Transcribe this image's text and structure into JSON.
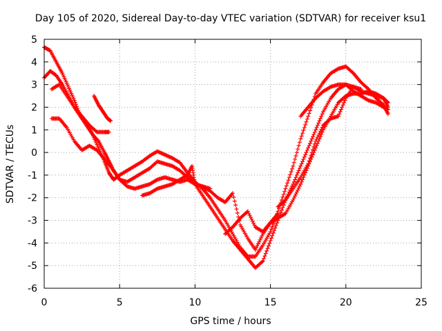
{
  "chart_data": {
    "type": "scatter",
    "title": "Day 105 of 2020, Sidereal Day-to-day VTEC variation (SDTVAR) for receiver ksu1",
    "xlabel": "GPS time / hours",
    "ylabel": "SDTVAR / TECUs",
    "xlim": [
      0,
      25
    ],
    "ylim": [
      -6,
      5
    ],
    "xticks": [
      0,
      5,
      10,
      15,
      20,
      25
    ],
    "yticks": [
      -6,
      -5,
      -4,
      -3,
      -2,
      -1,
      0,
      1,
      2,
      3,
      4,
      5
    ],
    "grid": true,
    "marker": "+",
    "color": "#ff0000",
    "series": [
      {
        "name": "trace-1",
        "points": [
          [
            0.0,
            4.65
          ],
          [
            0.4,
            4.5
          ],
          [
            0.8,
            4.0
          ],
          [
            1.2,
            3.5
          ],
          [
            1.6,
            2.9
          ],
          [
            2.0,
            2.3
          ],
          [
            2.4,
            1.6
          ],
          [
            2.8,
            1.2
          ],
          [
            3.2,
            0.8
          ],
          [
            3.6,
            0.2
          ],
          [
            4.0,
            -0.4
          ],
          [
            4.3,
            -0.9
          ],
          [
            4.6,
            -1.2
          ],
          [
            5.0,
            -1.0
          ],
          [
            5.5,
            -0.8
          ],
          [
            6.0,
            -0.6
          ],
          [
            6.5,
            -0.4
          ],
          [
            7.0,
            -0.15
          ],
          [
            7.5,
            0.05
          ],
          [
            8.0,
            -0.1
          ],
          [
            8.5,
            -0.25
          ],
          [
            9.0,
            -0.45
          ],
          [
            9.5,
            -0.9
          ],
          [
            10.0,
            -1.3
          ],
          [
            10.5,
            -1.6
          ],
          [
            11.0,
            -2.0
          ],
          [
            11.5,
            -2.5
          ],
          [
            12.0,
            -3.0
          ],
          [
            12.5,
            -3.6
          ],
          [
            13.0,
            -4.2
          ],
          [
            13.5,
            -4.6
          ],
          [
            14.0,
            -4.6
          ],
          [
            14.5,
            -4.1
          ],
          [
            15.0,
            -3.5
          ],
          [
            15.5,
            -2.6
          ],
          [
            16.0,
            -1.6
          ],
          [
            16.5,
            -0.6
          ],
          [
            17.0,
            0.6
          ],
          [
            17.5,
            1.6
          ],
          [
            18.0,
            2.6
          ],
          [
            18.5,
            3.1
          ],
          [
            19.0,
            3.5
          ],
          [
            19.5,
            3.7
          ],
          [
            20.0,
            3.8
          ],
          [
            20.5,
            3.5
          ],
          [
            21.0,
            3.1
          ],
          [
            21.5,
            2.8
          ],
          [
            22.0,
            2.4
          ],
          [
            22.5,
            2.1
          ],
          [
            22.8,
            1.7
          ]
        ]
      },
      {
        "name": "trace-2",
        "points": [
          [
            0.0,
            3.3
          ],
          [
            0.4,
            3.6
          ],
          [
            0.8,
            3.4
          ],
          [
            1.2,
            3.0
          ],
          [
            1.6,
            2.5
          ],
          [
            2.0,
            2.0
          ],
          [
            2.4,
            1.6
          ],
          [
            2.8,
            1.3
          ],
          [
            3.2,
            0.8
          ],
          [
            3.6,
            0.5
          ],
          [
            4.0,
            0.0
          ],
          [
            4.3,
            -0.4
          ],
          [
            4.6,
            -0.8
          ],
          [
            5.0,
            -1.2
          ],
          [
            5.5,
            -1.3
          ],
          [
            6.0,
            -1.1
          ],
          [
            6.5,
            -0.9
          ],
          [
            7.0,
            -0.7
          ],
          [
            7.5,
            -0.4
          ],
          [
            8.0,
            -0.5
          ],
          [
            8.5,
            -0.6
          ],
          [
            9.0,
            -0.8
          ],
          [
            9.5,
            -1.1
          ],
          [
            10.0,
            -1.4
          ],
          [
            10.5,
            -1.9
          ],
          [
            11.0,
            -2.4
          ],
          [
            11.5,
            -2.9
          ],
          [
            12.0,
            -3.4
          ],
          [
            12.5,
            -3.9
          ],
          [
            13.0,
            -4.3
          ],
          [
            13.5,
            -4.7
          ],
          [
            14.0,
            -5.1
          ],
          [
            14.5,
            -4.8
          ],
          [
            15.0,
            -3.9
          ],
          [
            15.5,
            -3.0
          ],
          [
            16.0,
            -2.1
          ],
          [
            16.5,
            -1.4
          ],
          [
            17.0,
            -0.6
          ],
          [
            17.5,
            0.2
          ],
          [
            18.0,
            1.0
          ],
          [
            18.5,
            1.8
          ],
          [
            19.0,
            2.4
          ],
          [
            19.5,
            2.8
          ],
          [
            20.0,
            3.0
          ],
          [
            20.5,
            2.9
          ],
          [
            21.0,
            2.7
          ],
          [
            21.5,
            2.6
          ],
          [
            22.0,
            2.5
          ],
          [
            22.5,
            2.4
          ],
          [
            22.8,
            2.2
          ]
        ]
      },
      {
        "name": "trace-3",
        "points": [
          [
            0.5,
            1.5
          ],
          [
            1.0,
            1.5
          ],
          [
            1.5,
            1.1
          ],
          [
            2.0,
            0.5
          ],
          [
            2.5,
            0.1
          ],
          [
            3.0,
            0.3
          ],
          [
            3.5,
            0.1
          ],
          [
            4.0,
            -0.3
          ],
          [
            4.5,
            -0.7
          ],
          [
            5.0,
            -1.2
          ],
          [
            5.5,
            -1.5
          ],
          [
            6.0,
            -1.6
          ],
          [
            6.5,
            -1.5
          ],
          [
            7.0,
            -1.4
          ],
          [
            7.5,
            -1.2
          ],
          [
            8.0,
            -1.1
          ],
          [
            8.5,
            -1.2
          ],
          [
            9.0,
            -1.3
          ],
          [
            9.5,
            -1.2
          ],
          [
            10.0,
            -1.4
          ],
          [
            10.5,
            -1.5
          ],
          [
            11.0,
            -1.7
          ],
          [
            11.5,
            -2.0
          ],
          [
            12.0,
            -2.2
          ],
          [
            12.5,
            -1.8
          ],
          [
            13.0,
            -3.2
          ],
          [
            13.5,
            -3.8
          ],
          [
            14.0,
            -4.3
          ],
          [
            14.5,
            -3.6
          ],
          [
            15.0,
            -3.1
          ],
          [
            15.5,
            -2.9
          ],
          [
            16.0,
            -2.7
          ],
          [
            16.5,
            -2.1
          ],
          [
            17.0,
            -1.4
          ],
          [
            17.5,
            -0.6
          ],
          [
            18.0,
            0.2
          ],
          [
            18.5,
            1.0
          ],
          [
            19.0,
            1.6
          ],
          [
            19.5,
            2.2
          ],
          [
            20.0,
            2.5
          ],
          [
            20.5,
            2.6
          ],
          [
            21.0,
            2.6
          ],
          [
            21.5,
            2.7
          ],
          [
            22.0,
            2.6
          ],
          [
            22.5,
            2.4
          ],
          [
            22.8,
            2.0
          ]
        ]
      },
      {
        "name": "trace-4",
        "points": [
          [
            3.3,
            2.5
          ],
          [
            3.6,
            2.1
          ],
          [
            3.9,
            1.8
          ],
          [
            4.2,
            1.5
          ],
          [
            4.4,
            1.4
          ]
        ]
      },
      {
        "name": "trace-5",
        "points": [
          [
            0.5,
            2.8
          ],
          [
            1.0,
            3.0
          ],
          [
            1.5,
            2.5
          ],
          [
            2.0,
            2.0
          ],
          [
            2.5,
            1.6
          ],
          [
            3.0,
            1.2
          ],
          [
            3.5,
            0.9
          ],
          [
            4.0,
            0.9
          ],
          [
            4.3,
            0.9
          ]
        ]
      },
      {
        "name": "trace-6",
        "points": [
          [
            6.5,
            -1.9
          ],
          [
            7.0,
            -1.8
          ],
          [
            7.5,
            -1.6
          ],
          [
            8.0,
            -1.5
          ],
          [
            8.5,
            -1.4
          ],
          [
            9.0,
            -1.2
          ],
          [
            9.5,
            -1.0
          ],
          [
            9.8,
            -0.6
          ],
          [
            10.0,
            -1.4
          ],
          [
            10.5,
            -1.5
          ],
          [
            11.0,
            -1.6
          ]
        ]
      },
      {
        "name": "trace-7",
        "points": [
          [
            15.5,
            -2.4
          ],
          [
            16.0,
            -2.1
          ],
          [
            16.5,
            -1.6
          ],
          [
            17.0,
            -1.1
          ],
          [
            17.5,
            -0.5
          ],
          [
            18.0,
            0.5
          ],
          [
            18.5,
            1.2
          ],
          [
            19.0,
            1.5
          ],
          [
            19.5,
            1.6
          ],
          [
            20.0,
            2.4
          ],
          [
            20.5,
            2.9
          ],
          [
            21.0,
            2.8
          ]
        ]
      },
      {
        "name": "trace-8",
        "points": [
          [
            17.0,
            1.6
          ],
          [
            17.5,
            2.0
          ],
          [
            18.0,
            2.4
          ],
          [
            18.5,
            2.7
          ],
          [
            19.0,
            2.9
          ],
          [
            19.5,
            3.0
          ],
          [
            20.0,
            3.0
          ],
          [
            20.5,
            2.7
          ],
          [
            21.0,
            2.5
          ],
          [
            21.5,
            2.3
          ],
          [
            22.0,
            2.2
          ],
          [
            22.5,
            2.0
          ],
          [
            22.8,
            1.9
          ]
        ]
      },
      {
        "name": "trace-9",
        "points": [
          [
            12.0,
            -3.6
          ],
          [
            12.5,
            -3.3
          ],
          [
            13.0,
            -2.9
          ],
          [
            13.5,
            -2.6
          ],
          [
            14.0,
            -3.3
          ],
          [
            14.5,
            -3.5
          ],
          [
            15.0,
            -3.1
          ],
          [
            15.5,
            -2.7
          ]
        ]
      }
    ]
  }
}
